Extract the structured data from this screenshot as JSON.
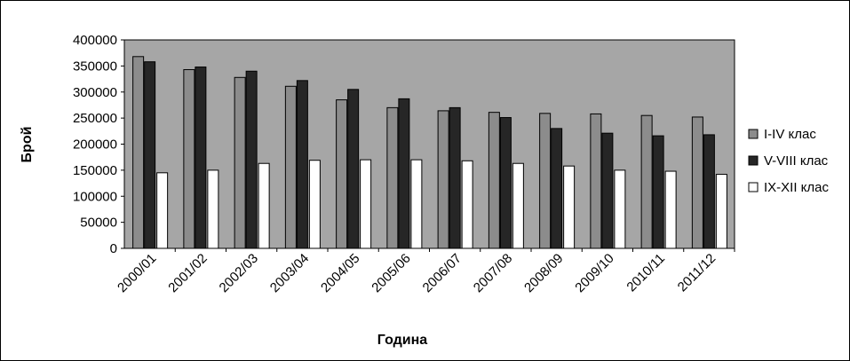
{
  "chart_data": {
    "type": "bar",
    "xlabel": "Година",
    "ylabel": "Брой",
    "ylim": [
      0,
      400000
    ],
    "yticks": [
      0,
      50000,
      100000,
      150000,
      200000,
      250000,
      300000,
      350000,
      400000
    ],
    "ytick_labels": [
      "0",
      "50000",
      "100000",
      "150000",
      "200000",
      "250000",
      "300000",
      "350000",
      "400000"
    ],
    "grid": false,
    "legend_position": "right",
    "plot_background": "#a6a6a6",
    "categories": [
      "2000/01",
      "2001/02",
      "2002/03",
      "2003/04",
      "2004/05",
      "2005/06",
      "2006/07",
      "2007/08",
      "2008/09",
      "2009/10",
      "2010/11",
      "2011/12"
    ],
    "series": [
      {
        "name": "I-IV клас",
        "color": "#8c8c8c",
        "values": [
          368000,
          343000,
          328000,
          311000,
          285000,
          270000,
          264000,
          261000,
          259000,
          258000,
          255000,
          252000
        ]
      },
      {
        "name": "V-VIII клас",
        "color": "#262626",
        "values": [
          358000,
          348000,
          340000,
          322000,
          305000,
          287000,
          270000,
          251000,
          230000,
          221000,
          216000,
          218000
        ]
      },
      {
        "name": "IX-XII клас",
        "color": "#ffffff",
        "values": [
          145000,
          150000,
          163000,
          169000,
          170000,
          170000,
          168000,
          163000,
          158000,
          150000,
          148000,
          142000
        ]
      }
    ]
  }
}
